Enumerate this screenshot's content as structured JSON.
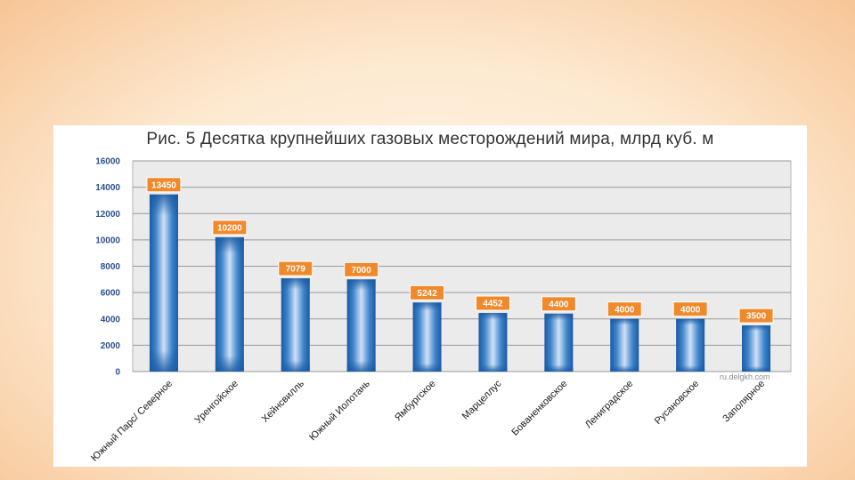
{
  "slide": {
    "source_text": "ru.delgkh.com"
  },
  "colors": {
    "bar_dark": "#1d5fa8",
    "bar_light": "#cfe0f6",
    "label_bg": "#f0892b",
    "plot_bg": "#ebebeb",
    "grid": "#9a9a9a",
    "tick_text": "#2e4f8c"
  },
  "chart_data": {
    "type": "bar",
    "title": "Рис. 5 Десятка крупнейших газовых месторождений мира, млрд куб. м",
    "xlabel": "",
    "ylabel": "",
    "ylim": [
      0,
      16000
    ],
    "yticks": [
      "0",
      "2000",
      "4000",
      "6000",
      "8000",
      "10000",
      "12000",
      "14000",
      "16000"
    ],
    "grid": true,
    "legend": "none",
    "categories": [
      "Южный Парс/ Северное",
      "Уренгойское",
      "Хейнсвилль",
      "Южный Иолотань",
      "Ямбургское",
      "Марцеллус",
      "Бованенковское",
      "Лениградское",
      "Русановское",
      "Заполярное"
    ],
    "values": [
      13450,
      10200,
      7079,
      7000,
      5242,
      4452,
      4400,
      4000,
      4000,
      3500
    ],
    "data_labels": [
      "13450",
      "10200",
      "7079",
      "7000",
      "5242",
      "4452",
      "4400",
      "4000",
      "4000",
      "3500"
    ]
  }
}
